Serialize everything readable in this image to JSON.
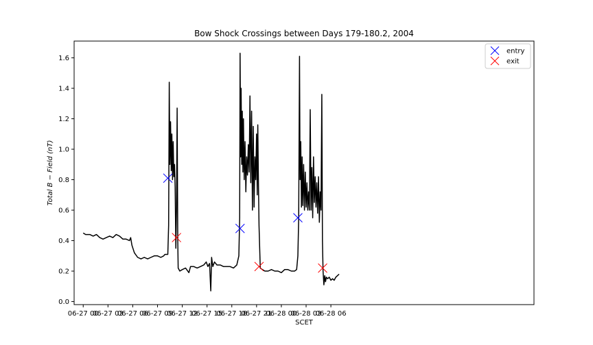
{
  "chart_data": {
    "type": "line",
    "title": "Bow Shock Crossings between Days 179-180.2, 2004",
    "xlabel": "SCET",
    "ylabel": "Total B − Field (nT)",
    "x_unit": "hours from 06-27 00",
    "xlim": [
      -1.1,
      54.6
    ],
    "ylim": [
      -0.02,
      1.71
    ],
    "x_ticks": [
      {
        "value": 0,
        "label": "06-27 00"
      },
      {
        "value": 3,
        "label": "06-27 03"
      },
      {
        "value": 6,
        "label": "06-27 06"
      },
      {
        "value": 9,
        "label": "06-27 09"
      },
      {
        "value": 12,
        "label": "06-27 12"
      },
      {
        "value": 15,
        "label": "06-27 15"
      },
      {
        "value": 18,
        "label": "06-27 18"
      },
      {
        "value": 21,
        "label": "06-27 21"
      },
      {
        "value": 24,
        "label": "06-28 00"
      },
      {
        "value": 27,
        "label": "06-28 03"
      },
      {
        "value": 30,
        "label": "06-28 06"
      }
    ],
    "y_ticks": [
      {
        "value": 0.0,
        "label": "0.0"
      },
      {
        "value": 0.2,
        "label": "0.2"
      },
      {
        "value": 0.4,
        "label": "0.4"
      },
      {
        "value": 0.6,
        "label": "0.6"
      },
      {
        "value": 0.8,
        "label": "0.8"
      },
      {
        "value": 1.0,
        "label": "1.0"
      },
      {
        "value": 1.2,
        "label": "1.2"
      },
      {
        "value": 1.4,
        "label": "1.4"
      },
      {
        "value": 1.6,
        "label": "1.6"
      }
    ],
    "series": [
      {
        "color": "#000000",
        "points": [
          [
            0.0,
            0.45
          ],
          [
            0.3,
            0.44
          ],
          [
            0.8,
            0.44
          ],
          [
            1.2,
            0.43
          ],
          [
            1.6,
            0.44
          ],
          [
            2.0,
            0.42
          ],
          [
            2.4,
            0.41
          ],
          [
            2.8,
            0.42
          ],
          [
            3.2,
            0.43
          ],
          [
            3.6,
            0.42
          ],
          [
            4.0,
            0.44
          ],
          [
            4.4,
            0.43
          ],
          [
            4.8,
            0.41
          ],
          [
            5.2,
            0.41
          ],
          [
            5.6,
            0.4
          ],
          [
            5.75,
            0.42
          ],
          [
            5.9,
            0.37
          ],
          [
            6.2,
            0.32
          ],
          [
            6.6,
            0.29
          ],
          [
            7.0,
            0.28
          ],
          [
            7.4,
            0.29
          ],
          [
            7.8,
            0.28
          ],
          [
            8.2,
            0.29
          ],
          [
            8.6,
            0.3
          ],
          [
            9.0,
            0.3
          ],
          [
            9.4,
            0.29
          ],
          [
            9.75,
            0.3
          ],
          [
            9.9,
            0.31
          ],
          [
            10.25,
            0.31
          ],
          [
            10.35,
            0.5
          ],
          [
            10.42,
            1.44
          ],
          [
            10.5,
            0.9
          ],
          [
            10.58,
            1.18
          ],
          [
            10.66,
            0.86
          ],
          [
            10.74,
            1.1
          ],
          [
            10.82,
            0.8
          ],
          [
            10.9,
            1.05
          ],
          [
            10.98,
            0.82
          ],
          [
            11.06,
            0.9
          ],
          [
            11.14,
            0.75
          ],
          [
            11.22,
            0.35
          ],
          [
            11.3,
            0.62
          ],
          [
            11.38,
            1.27
          ],
          [
            11.45,
            0.4
          ],
          [
            11.5,
            0.22
          ],
          [
            11.7,
            0.2
          ],
          [
            12.0,
            0.21
          ],
          [
            12.4,
            0.22
          ],
          [
            12.8,
            0.19
          ],
          [
            13.0,
            0.23
          ],
          [
            13.4,
            0.23
          ],
          [
            13.8,
            0.22
          ],
          [
            14.2,
            0.23
          ],
          [
            14.6,
            0.24
          ],
          [
            14.9,
            0.26
          ],
          [
            15.1,
            0.23
          ],
          [
            15.3,
            0.25
          ],
          [
            15.45,
            0.07
          ],
          [
            15.55,
            0.29
          ],
          [
            15.7,
            0.23
          ],
          [
            15.9,
            0.26
          ],
          [
            16.2,
            0.24
          ],
          [
            16.6,
            0.24
          ],
          [
            17.0,
            0.23
          ],
          [
            17.4,
            0.23
          ],
          [
            17.8,
            0.23
          ],
          [
            18.2,
            0.22
          ],
          [
            18.6,
            0.24
          ],
          [
            18.85,
            0.3
          ],
          [
            18.95,
            0.55
          ],
          [
            19.0,
            1.63
          ],
          [
            19.07,
            0.95
          ],
          [
            19.13,
            1.4
          ],
          [
            19.2,
            0.9
          ],
          [
            19.27,
            1.25
          ],
          [
            19.34,
            0.85
          ],
          [
            19.41,
            1.2
          ],
          [
            19.5,
            0.8
          ],
          [
            19.6,
            1.05
          ],
          [
            19.7,
            0.72
          ],
          [
            19.8,
            0.95
          ],
          [
            19.9,
            0.83
          ],
          [
            20.0,
            1.03
          ],
          [
            20.1,
            0.85
          ],
          [
            20.2,
            1.35
          ],
          [
            20.3,
            0.78
          ],
          [
            20.4,
            1.25
          ],
          [
            20.5,
            0.6
          ],
          [
            20.6,
            1.15
          ],
          [
            20.7,
            0.62
          ],
          [
            20.8,
            0.95
          ],
          [
            20.9,
            0.8
          ],
          [
            21.0,
            1.1
          ],
          [
            21.08,
            0.7
          ],
          [
            21.15,
            1.16
          ],
          [
            21.22,
            0.8
          ],
          [
            21.3,
            0.5
          ],
          [
            21.45,
            0.22
          ],
          [
            21.7,
            0.21
          ],
          [
            22.0,
            0.2
          ],
          [
            22.4,
            0.2
          ],
          [
            22.8,
            0.21
          ],
          [
            23.2,
            0.2
          ],
          [
            23.6,
            0.2
          ],
          [
            24.0,
            0.19
          ],
          [
            24.4,
            0.21
          ],
          [
            24.8,
            0.21
          ],
          [
            25.2,
            0.2
          ],
          [
            25.6,
            0.2
          ],
          [
            25.85,
            0.21
          ],
          [
            26.0,
            0.3
          ],
          [
            26.1,
            0.55
          ],
          [
            26.2,
            1.61
          ],
          [
            26.27,
            0.8
          ],
          [
            26.35,
            1.05
          ],
          [
            26.43,
            0.62
          ],
          [
            26.52,
            0.95
          ],
          [
            26.6,
            0.63
          ],
          [
            26.7,
            0.9
          ],
          [
            26.8,
            0.6
          ],
          [
            26.9,
            0.85
          ],
          [
            27.0,
            0.62
          ],
          [
            27.1,
            0.78
          ],
          [
            27.2,
            0.6
          ],
          [
            27.3,
            0.72
          ],
          [
            27.4,
            0.6
          ],
          [
            27.5,
            1.26
          ],
          [
            27.6,
            0.6
          ],
          [
            27.7,
            0.88
          ],
          [
            27.8,
            0.55
          ],
          [
            27.9,
            0.95
          ],
          [
            28.0,
            0.65
          ],
          [
            28.1,
            0.82
          ],
          [
            28.2,
            0.62
          ],
          [
            28.3,
            0.78
          ],
          [
            28.4,
            0.58
          ],
          [
            28.5,
            0.82
          ],
          [
            28.6,
            0.52
          ],
          [
            28.7,
            0.72
          ],
          [
            28.8,
            0.6
          ],
          [
            28.9,
            1.36
          ],
          [
            28.98,
            0.4
          ],
          [
            29.05,
            0.2
          ],
          [
            29.15,
            0.11
          ],
          [
            29.25,
            0.17
          ],
          [
            29.35,
            0.13
          ],
          [
            29.45,
            0.16
          ],
          [
            29.6,
            0.15
          ],
          [
            29.8,
            0.16
          ],
          [
            30.0,
            0.14
          ],
          [
            30.2,
            0.15
          ],
          [
            30.4,
            0.14
          ],
          [
            30.6,
            0.16
          ],
          [
            30.8,
            0.17
          ],
          [
            31.0,
            0.18
          ]
        ]
      }
    ],
    "markers": [
      {
        "name": "entry",
        "color": "#0000ff",
        "symbol": "x",
        "points": [
          [
            10.25,
            0.81
          ],
          [
            19.0,
            0.48
          ],
          [
            26.0,
            0.55
          ]
        ]
      },
      {
        "name": "exit",
        "color": "#ff0000",
        "symbol": "x",
        "points": [
          [
            11.3,
            0.42
          ],
          [
            21.3,
            0.23
          ],
          [
            29.0,
            0.22
          ]
        ]
      }
    ],
    "legend_placement": "top-right",
    "grid": false
  }
}
